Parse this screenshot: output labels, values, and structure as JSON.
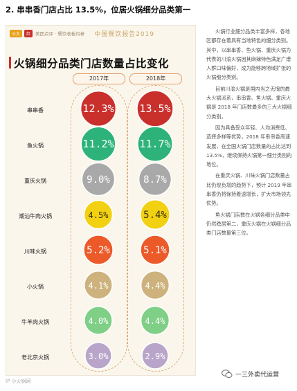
{
  "heading": "2. 串串香门店占比 13.5%，位居火锅细分品类第一",
  "card": {
    "brand_logo": "火大",
    "brand_badge": "红",
    "brand_name": "美团点评 · 餐饮老板内参",
    "report_title": "中国餐饮报告2019",
    "chart_title": "火锅细分品类门店数量占比变化"
  },
  "chart_data": {
    "type": "table",
    "title": "火锅细分品类门店数量占比变化",
    "columns": [
      "2017年",
      "2018年"
    ],
    "rows": [
      {
        "label": "串串香",
        "values": [
          "12.3%",
          "13.5%"
        ],
        "nums": [
          12.3,
          13.5
        ],
        "color": "#c9302c"
      },
      {
        "label": "鱼火锅",
        "values": [
          "11.2%",
          "11.7%"
        ],
        "nums": [
          11.2,
          11.7
        ],
        "color": "#2db37a"
      },
      {
        "label": "重庆火锅",
        "values": [
          "9.0%",
          "8.7%"
        ],
        "nums": [
          9.0,
          8.7
        ],
        "color": "#a9a9a9"
      },
      {
        "label": "潮汕牛肉火锅",
        "values": [
          "4.5%",
          "5.4%"
        ],
        "nums": [
          4.5,
          5.4
        ],
        "color": "#f2d012"
      },
      {
        "label": "川味火锅",
        "values": [
          "5.2%",
          "5.1%"
        ],
        "nums": [
          5.2,
          5.1
        ],
        "color": "#ec5a2a"
      },
      {
        "label": "小火锅",
        "values": [
          "4.1%",
          "4.4%"
        ],
        "nums": [
          4.1,
          4.4
        ],
        "color": "#cdb27e"
      },
      {
        "label": "牛羊肉火锅",
        "values": [
          "4.0%",
          "4.4%"
        ],
        "nums": [
          4.0,
          4.4
        ],
        "color": "#7fcf86"
      },
      {
        "label": "老北京火锅",
        "values": [
          "3.0%",
          "2.9%"
        ],
        "nums": [
          3.0,
          2.9
        ],
        "color": "#b9a5c9"
      }
    ]
  },
  "sidebar": {
    "paragraphs": [
      "火锅行业细分品类丰富多样，各地区都存在着具有当地特色的细分类别。其中，以串串香、鱼火锅、重庆火锅为代表的川渝火锅因其麻辣特色满足广谱人群口味偏好，成为能够跨地域扩张的火锅细分类别。",
      "目前川渝火锅是国内当之无愧的最大火锅派系，串串香、鱼火锅、重庆火锅是 2018 年门店数最多的三大火锅细分类别。",
      "因为具备受众年轻、人均消费低、选择多样等优势，2018 年串串香高速发展，在全国火锅门店数量的占比达到 13.5%，继续保持火锅第一细分类别的地位。",
      "在重庆火锅、川味火锅门店数量占比仍现负增的趋势下，预计 2019 年串串香仍将保持着速增长，扩大市场领先优势。",
      "鱼火锅门店数在火锅各细分品类中仍然稳居第二，重庆火锅在火锅细分品类门店数量第三位。"
    ]
  },
  "footer": {
    "left": "IP 小火锅网",
    "right": "一三外卖代运营"
  },
  "colors": {
    "accent_red": "#c9302c",
    "card_bg": "#fbf6ec"
  }
}
